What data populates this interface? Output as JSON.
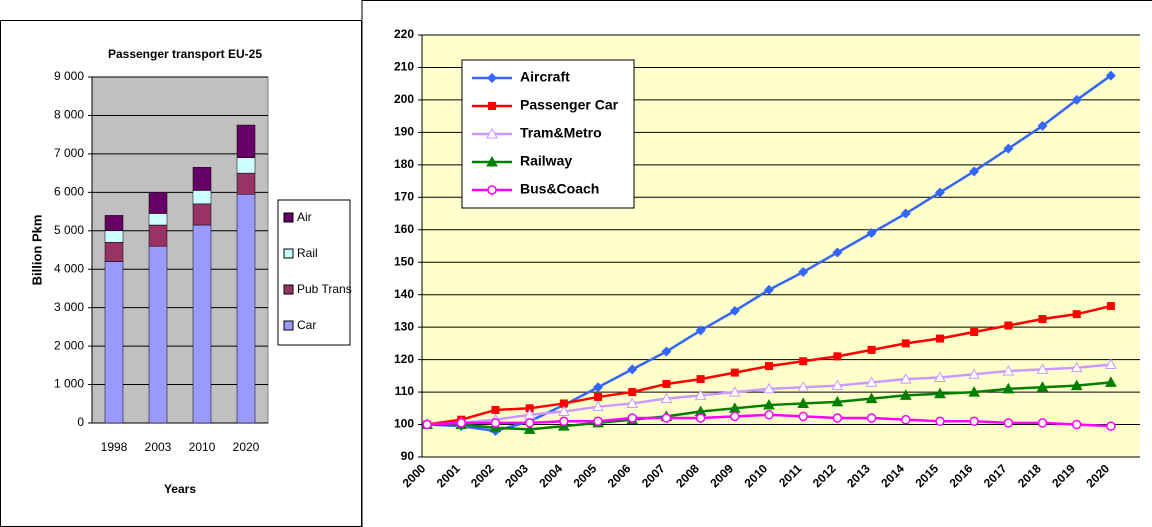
{
  "chart_data": [
    {
      "type": "stacked-bar",
      "title": "Passenger transport EU-25",
      "x_label": "Years",
      "y_label": "Billion Pkm",
      "categories": [
        "1998",
        "2003",
        "2010",
        "2020"
      ],
      "series": [
        {
          "name": "Car",
          "color": "#9999ff",
          "values": [
            4200,
            4600,
            5150,
            5950
          ]
        },
        {
          "name": "Pub Trans",
          "color": "#993366",
          "values": [
            500,
            550,
            550,
            550
          ]
        },
        {
          "name": "Rail",
          "color": "#ccffff",
          "values": [
            300,
            300,
            350,
            400
          ]
        },
        {
          "name": "Air",
          "color": "#660066",
          "values": [
            400,
            550,
            600,
            850
          ]
        }
      ],
      "ylim": [
        0,
        9000
      ],
      "yticks": [
        0,
        {
          "value": 1000,
          "label": "1 000"
        },
        {
          "value": 2000,
          "label": "2 000"
        },
        {
          "value": 3000,
          "label": "3 000"
        },
        {
          "value": 4000,
          "label": "4 000"
        },
        {
          "value": 5000,
          "label": "5 000"
        },
        {
          "value": 6000,
          "label": "6 000"
        },
        {
          "value": 7000,
          "label": "7 000"
        },
        {
          "value": 8000,
          "label": "8 000"
        },
        {
          "value": 9000,
          "label": "9 000"
        }
      ],
      "grid": true,
      "background": "#c0c0c0",
      "legend": "right"
    },
    {
      "type": "line",
      "categories": [
        "2000",
        "2001",
        "2002",
        "2003",
        "2004",
        "2005",
        "2006",
        "2007",
        "2008",
        "2009",
        "2010",
        "2011",
        "2012",
        "2013",
        "2014",
        "2015",
        "2016",
        "2017",
        "2018",
        "2019",
        "2020"
      ],
      "series": [
        {
          "name": "Aircraft",
          "color": "#3366ff",
          "marker": "diamond",
          "values": [
            100,
            99.5,
            98,
            101,
            106,
            111.5,
            117,
            122.5,
            129,
            135,
            141.5,
            147,
            153,
            159,
            165,
            171.5,
            178,
            185,
            192,
            200,
            207.5
          ]
        },
        {
          "name": "Passenger Car",
          "color": "#ff0000",
          "marker": "square",
          "values": [
            100,
            101.5,
            104.5,
            105,
            106.5,
            108.5,
            110,
            112.5,
            114,
            116,
            118,
            119.5,
            121,
            123,
            125,
            126.5,
            128.5,
            130.5,
            132.5,
            134,
            136.5
          ]
        },
        {
          "name": "Tram&Metro",
          "color": "#cc99ff",
          "marker": "open-triangle",
          "values": [
            100,
            100.5,
            101.5,
            103,
            104,
            105.5,
            106.5,
            108,
            109,
            110,
            111,
            111.5,
            112,
            113,
            114,
            114.5,
            115.5,
            116.5,
            117,
            117.5,
            118.5
          ]
        },
        {
          "name": "Railway",
          "color": "#008000",
          "marker": "triangle",
          "values": [
            100,
            100,
            99,
            98.5,
            99.5,
            100.5,
            101.5,
            102.5,
            104,
            105,
            106,
            106.5,
            107,
            108,
            109,
            109.5,
            110,
            111,
            111.5,
            112,
            113
          ]
        },
        {
          "name": "Bus&Coach",
          "color": "#ff00ff",
          "marker": "open-circle",
          "values": [
            100,
            100.5,
            100.5,
            100.5,
            101,
            101,
            102,
            102,
            102,
            102.5,
            103,
            102.5,
            102,
            102,
            101.5,
            101,
            101,
            100.5,
            100.5,
            100,
            99.5
          ]
        }
      ],
      "ylim": [
        90,
        220
      ],
      "yticks": [
        90,
        100,
        110,
        120,
        130,
        140,
        150,
        160,
        170,
        180,
        190,
        200,
        210,
        220
      ],
      "grid": true,
      "background": "#ffffcc",
      "legend": "upper left"
    }
  ]
}
